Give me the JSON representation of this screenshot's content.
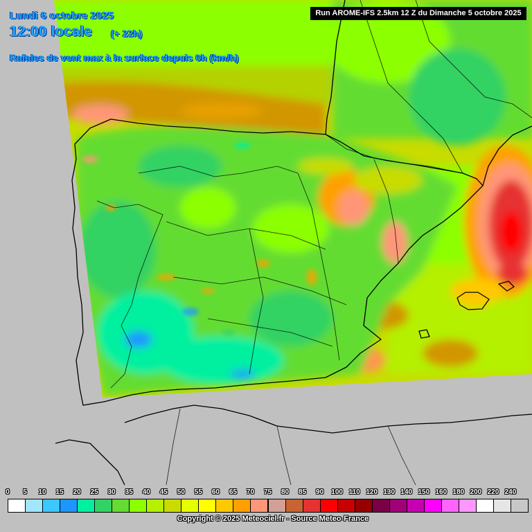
{
  "header": {
    "date": "Lundi 6 octobre 2025",
    "time": "12:00 locale",
    "offset": "(+ 22h)",
    "product": "Rafales de vent max à la surface depuis 0h (km/h)"
  },
  "run_info": "Run AROME-IFS 2.5km 12 Z du Dimanche 5 octobre 2025",
  "legend": {
    "unit": "km/h",
    "ticks": [
      "0",
      "5",
      "10",
      "15",
      "20",
      "25",
      "30",
      "35",
      "40",
      "45",
      "50",
      "55",
      "60",
      "65",
      "70",
      "75",
      "80",
      "85",
      "90",
      "100",
      "110",
      "120",
      "130",
      "140",
      "150",
      "160",
      "180",
      "200",
      "220",
      "240"
    ],
    "colors": [
      "#ffffff",
      "#a0e6ff",
      "#3cc8ff",
      "#1e96ff",
      "#00f0a0",
      "#32d264",
      "#64dc32",
      "#8cff00",
      "#b4f000",
      "#c8dc00",
      "#e6ff00",
      "#ffff00",
      "#ffc800",
      "#ffa000",
      "#ff9678",
      "#d2a096",
      "#c86432",
      "#e63232",
      "#ff0000",
      "#c80000",
      "#960000",
      "#7a0046",
      "#a00078",
      "#c800b4",
      "#ff00ff",
      "#ff64ff",
      "#ff96ff",
      "#ffffff",
      "#e6e6e6",
      "#c8c8c8"
    ]
  },
  "map": {
    "region": "Péninsule Ibérique",
    "ocean_color": "#c0c0c0",
    "dominant_color": "#64dc32",
    "max_gust_zone_color": "#ff0000"
  },
  "copyright": "Copyright © 2025 Meteociel.fr - Source Meteo-France"
}
